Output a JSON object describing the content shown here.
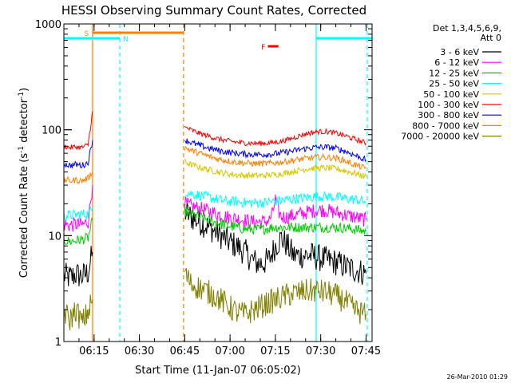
{
  "chart_data": {
    "type": "line",
    "title": "HESSI Observing Summary Count Rates, Corrected",
    "xlabel": "Start Time (11-Jan-07 06:05:02)",
    "ylabel_main": "Corrected Count Rate (s",
    "ylabel_sup1": "-1",
    "ylabel_mid": " detector",
    "ylabel_sup2": "-1",
    "ylabel_end": ")",
    "yscale": "log",
    "ylim": [
      1,
      1000
    ],
    "xlim_minutes": [
      0,
      102
    ],
    "x_ticks": [
      {
        "label": "06:15",
        "min": 10
      },
      {
        "label": "06:30",
        "min": 25
      },
      {
        "label": "06:45",
        "min": 40
      },
      {
        "label": "07:00",
        "min": 55
      },
      {
        "label": "07:15",
        "min": 70
      },
      {
        "label": "07:30",
        "min": 85
      },
      {
        "label": "07:45",
        "min": 100
      }
    ],
    "y_ticks": [
      {
        "label": "1",
        "value": 1
      },
      {
        "label": "10",
        "value": 10
      },
      {
        "label": "100",
        "value": 100
      },
      {
        "label": "1000",
        "value": 1000
      }
    ],
    "legend_header": [
      "Det 1,3,4,5,6,9,",
      "Att 0"
    ],
    "legend_position": "right",
    "series": [
      {
        "name": "3 - 6 keV",
        "color": "#000000",
        "segments": [
          {
            "x": [
              0,
              2,
              4,
              6,
              8,
              9.5
            ],
            "y": [
              4.2,
              4.0,
              4.3,
              4.1,
              4.5,
              7
            ]
          },
          {
            "x": [
              40,
              42,
              45,
              48,
              51,
              54,
              57,
              60,
              62,
              64,
              66,
              68,
              70,
              72,
              74,
              76,
              78,
              80,
              82,
              84,
              86,
              88,
              90,
              92,
              94,
              96,
              98,
              100
            ],
            "y": [
              17,
              15,
              13.5,
              12,
              10.5,
              9,
              8,
              7,
              6,
              5.5,
              5.5,
              6,
              8,
              9.5,
              8,
              6.5,
              6.5,
              6.5,
              6.5,
              6.2,
              6,
              5.8,
              5.6,
              5.3,
              5,
              4.8,
              4.6,
              4.4
            ]
          }
        ]
      },
      {
        "name": "6 - 12 keV",
        "color": "#ff00ff",
        "segments": [
          {
            "x": [
              0,
              2,
              4,
              6,
              8,
              9.5
            ],
            "y": [
              12.8,
              12.5,
              12.8,
              12.6,
              13.5,
              30
            ]
          },
          {
            "x": [
              40,
              42,
              45,
              48,
              51,
              54,
              57,
              60,
              62,
              64,
              66,
              68,
              69,
              70,
              71,
              72,
              74,
              76,
              78,
              80,
              82,
              84,
              86,
              88,
              90,
              92,
              94,
              96,
              98,
              100
            ],
            "y": [
              20,
              19,
              18,
              17,
              16,
              15,
              14.5,
              14,
              13.5,
              13.5,
              13.5,
              14,
              16,
              22,
              17,
              15,
              15,
              15.5,
              16,
              16.5,
              17,
              17.5,
              17.5,
              17,
              16.5,
              16,
              15.5,
              15,
              14.5,
              14
            ]
          }
        ]
      },
      {
        "name": "12 - 25 keV",
        "color": "#00cc00",
        "segments": [
          {
            "x": [
              0,
              2,
              4,
              6,
              8,
              9.5
            ],
            "y": [
              9,
              8.8,
              9,
              9.2,
              9.5,
              14
            ]
          },
          {
            "x": [
              40,
              42,
              45,
              48,
              51,
              54,
              57,
              60,
              63,
              66,
              69,
              72,
              75,
              78,
              81,
              84,
              87,
              90,
              93,
              96,
              100
            ],
            "y": [
              17,
              16,
              15,
              14,
              13,
              12.5,
              12,
              11.5,
              11.5,
              11.5,
              12,
              12,
              12,
              12,
              12,
              12,
              12,
              12,
              11.8,
              11.5,
              11
            ]
          }
        ]
      },
      {
        "name": "25 - 50 keV",
        "color": "#00ffff",
        "segments": [
          {
            "x": [
              0,
              2,
              4,
              6,
              8,
              9.5
            ],
            "y": [
              15.5,
              15.5,
              15.8,
              16,
              16,
              18
            ]
          },
          {
            "x": [
              40,
              42,
              45,
              48,
              51,
              54,
              57,
              60,
              63,
              66,
              69,
              72,
              75,
              78,
              81,
              84,
              87,
              90,
              93,
              96,
              100
            ],
            "y": [
              26,
              25,
              24,
              23,
              22,
              21,
              21,
              20.5,
              20.5,
              20.5,
              21,
              21.5,
              22,
              22.5,
              23,
              23.5,
              23.5,
              23,
              22.5,
              22,
              21
            ]
          }
        ]
      },
      {
        "name": "50 - 100 keV",
        "color": "#d4c800",
        "segments": [
          {
            "x": [
              40,
              42,
              45,
              48,
              51,
              54,
              57,
              60,
              63,
              66,
              69,
              72,
              75,
              78,
              81,
              84,
              87,
              90,
              93,
              96,
              100
            ],
            "y": [
              50,
              47,
              44,
              42,
              40,
              38.5,
              37.5,
              37,
              37,
              37,
              37.5,
              38.5,
              40,
              41.5,
              43,
              43.5,
              43.5,
              43,
              41,
              39,
              36
            ]
          }
        ]
      },
      {
        "name": "100 - 300 keV",
        "color": "#ff0000",
        "segments": [
          {
            "x": [
              0,
              2,
              4,
              6,
              8,
              9.5
            ],
            "y": [
              70,
              68,
              69,
              68,
              72,
              150
            ]
          },
          {
            "x": [
              40,
              42,
              45,
              48,
              51,
              54,
              57,
              60,
              63,
              66,
              69,
              72,
              75,
              78,
              81,
              84,
              87,
              90,
              93,
              96,
              100
            ],
            "y": [
              105,
              100,
              92,
              87,
              82,
              79,
              76.5,
              75,
              74.5,
              74.5,
              75.5,
              78,
              82,
              88,
              93,
              96,
              96,
              93,
              88,
              82,
              75
            ]
          }
        ]
      },
      {
        "name": "300 - 800 keV",
        "color": "#0000ff",
        "segments": [
          {
            "x": [
              0,
              2,
              4,
              6,
              8,
              9.5
            ],
            "y": [
              48,
              46,
              47,
              46,
              49,
              80
            ]
          },
          {
            "x": [
              40,
              42,
              45,
              48,
              51,
              54,
              57,
              60,
              63,
              66,
              69,
              72,
              75,
              78,
              81,
              84,
              87,
              90,
              93,
              96,
              100
            ],
            "y": [
              80,
              76,
              71,
              67,
              64,
              61.5,
              60,
              59,
              58.5,
              58.5,
              59,
              60.5,
              62.5,
              65,
              67,
              68.5,
              68.5,
              67,
              63,
              58,
              52
            ]
          }
        ]
      },
      {
        "name": "800 - 7000 keV",
        "color": "#ff8000",
        "segments": [
          {
            "x": [
              0,
              2,
              4,
              6,
              8,
              9.5
            ],
            "y": [
              34,
              33,
              33.5,
              33,
              35,
              40
            ]
          },
          {
            "x": [
              40,
              42,
              45,
              48,
              51,
              54,
              57,
              60,
              63,
              66,
              69,
              72,
              75,
              78,
              81,
              84,
              87,
              90,
              93,
              96,
              100
            ],
            "y": [
              68,
              64,
              60,
              56,
              53,
              51,
              49.5,
              48.5,
              48,
              48,
              48.5,
              49.5,
              51,
              52.5,
              54,
              55,
              55,
              54,
              51,
              47,
              43
            ]
          }
        ]
      },
      {
        "name": "7000 - 20000 keV",
        "color": "#808000",
        "segments": [
          {
            "x": [
              0,
              2,
              4,
              6,
              8,
              9.5
            ],
            "y": [
              1.9,
              1.6,
              2.0,
              1.5,
              1.9,
              2.5
            ]
          },
          {
            "x": [
              40,
              42,
              45,
              48,
              51,
              54,
              57,
              60,
              63,
              66,
              69,
              72,
              75,
              78,
              81,
              84,
              87,
              90,
              93,
              96,
              100
            ],
            "y": [
              4.5,
              3.5,
              3.2,
              2.9,
              2.6,
              2.2,
              1.9,
              1.8,
              2.0,
              2.2,
              2.4,
              2.6,
              2.8,
              2.9,
              3.0,
              3.0,
              2.9,
              2.7,
              2.4,
              2.0,
              1.8
            ]
          }
        ]
      }
    ],
    "observing_flags": [
      {
        "label": "S",
        "color": "#ff8000",
        "start_min": 9.5,
        "end_min": 39.6,
        "level": 1,
        "label_min": 7.5
      },
      {
        "label": "N",
        "color": "#00ffff",
        "start_min": 0,
        "end_min": 18.5,
        "level": 2,
        "label_min": 20.5
      },
      {
        "label": "",
        "color": "#00ffff",
        "start_min": 83.5,
        "end_min": 102,
        "level": 2
      },
      {
        "label": "F",
        "color": "#ff0000",
        "start_min": 67.5,
        "end_min": 71,
        "level": 3,
        "label_min": 66
      }
    ],
    "vertical_markers": [
      {
        "min": 9.5,
        "color": "#ff8000",
        "style": "solid"
      },
      {
        "min": 18.5,
        "color": "#00ffff",
        "style": "dashed"
      },
      {
        "min": 39.6,
        "color": "#ff8000",
        "style": "dashed"
      },
      {
        "min": 83.5,
        "color": "#00ffff",
        "style": "solid"
      },
      {
        "min": 100.4,
        "color": "#00ffff",
        "style": "dashed"
      }
    ],
    "timestamp": "26-Mar-2010 01:29"
  }
}
